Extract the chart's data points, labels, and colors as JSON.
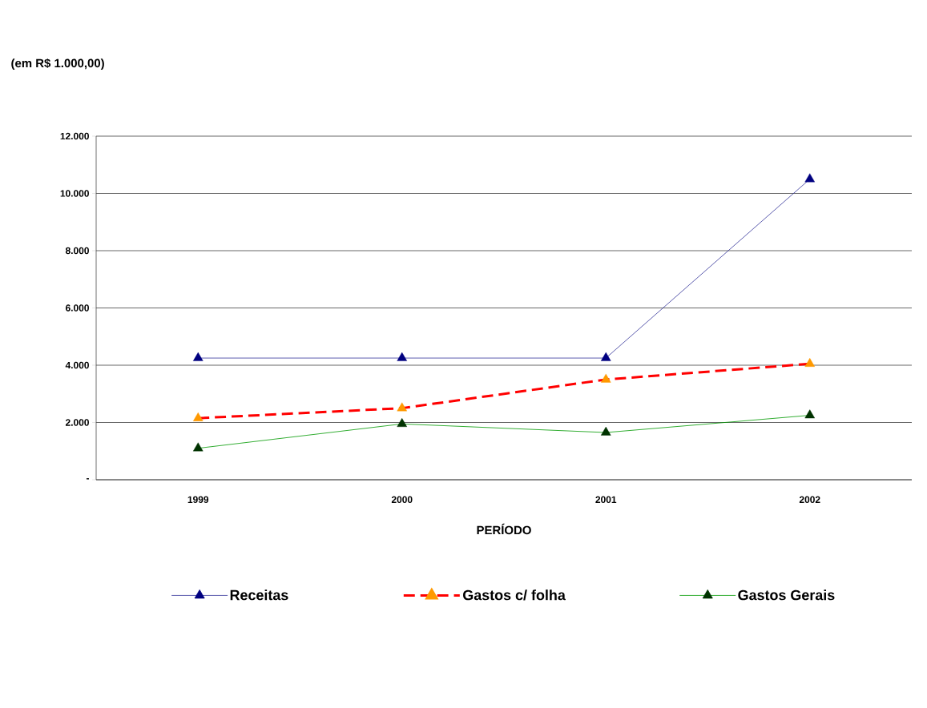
{
  "chart_data": {
    "type": "line",
    "annotations": [
      "(em R$ 1.000,00)"
    ],
    "xlabel": "PERÍODO",
    "categories": [
      "1999",
      "2000",
      "2001",
      "2002"
    ],
    "series": [
      {
        "name": "Receitas",
        "color": "#333399",
        "colors": [
          "#000080",
          "#000080",
          "#000080",
          "#000080"
        ],
        "line_style": "solid",
        "values": [
          4250,
          4250,
          4250,
          10500
        ]
      },
      {
        "name": "Gastos c/ folha",
        "color": "#ff0000",
        "colors": [
          "#ff9900",
          "#ff9900",
          "#ff9900",
          "#ff9900"
        ],
        "line_style": "dashed",
        "values": [
          2150,
          2500,
          3500,
          4050
        ]
      },
      {
        "name": "Gastos Gerais",
        "color": "#009900",
        "colors": [
          "#003300",
          "#003300",
          "#003300",
          "#003300"
        ],
        "line_style": "solid",
        "values": [
          1100,
          1950,
          1650,
          2250
        ]
      }
    ],
    "ylim": [
      0,
      12000
    ],
    "yticks": [
      {
        "value": 0,
        "label": "-"
      },
      {
        "value": 2000,
        "label": "2.000"
      },
      {
        "value": 4000,
        "label": "4.000"
      },
      {
        "value": 6000,
        "label": "6.000"
      },
      {
        "value": 8000,
        "label": "8.000"
      },
      {
        "value": 10000,
        "label": "10.000"
      },
      {
        "value": 12000,
        "label": "12.000"
      }
    ],
    "grid": "y",
    "legend": "bottom",
    "marker": "triangle"
  }
}
